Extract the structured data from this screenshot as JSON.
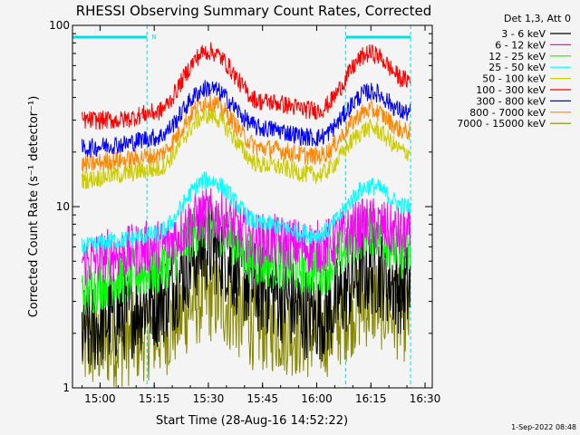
{
  "chart_data": {
    "type": "line",
    "title": "RHESSI Observing Summary Count Rates, Corrected",
    "xlabel": "Start Time (28-Aug-16 14:52:22)",
    "ylabel": "Corrected Count Rate (s⁻¹ detector⁻¹)",
    "yscale": "log",
    "ylim": [
      1,
      100
    ],
    "xlim": [
      "14:52:22",
      "16:32:00"
    ],
    "xticks": [
      "15:00",
      "15:15",
      "15:30",
      "15:45",
      "16:00",
      "16:15",
      "16:30"
    ],
    "yticks": [
      "1",
      "10",
      "100"
    ],
    "grid": false,
    "legend_title": "Det 1,3, Att 0",
    "legend_position": "top-right-outside",
    "series": [
      {
        "name": "3 - 6 keV",
        "color": "#000000",
        "x": [
          "14:55",
          "15:05",
          "15:15",
          "15:30",
          "15:45",
          "16:00",
          "16:15",
          "16:25"
        ],
        "values": [
          2,
          2.5,
          3.0,
          6.0,
          3.5,
          2.5,
          4.5,
          3.5
        ]
      },
      {
        "name": "6 - 12 keV",
        "color": "#ff00ff",
        "x": [
          "14:55",
          "15:05",
          "15:15",
          "15:30",
          "15:45",
          "16:00",
          "16:15",
          "16:25"
        ],
        "values": [
          5,
          5.5,
          6,
          9,
          6.5,
          6,
          8,
          7
        ]
      },
      {
        "name": "12 - 25 keV",
        "color": "#00ff00",
        "x": [
          "14:55",
          "15:05",
          "15:15",
          "15:30",
          "15:45",
          "16:00",
          "16:15",
          "16:25"
        ],
        "values": [
          3.5,
          4,
          4.5,
          8,
          5,
          4.5,
          7.5,
          5.5
        ]
      },
      {
        "name": "25 - 50 keV",
        "color": "#00ffff",
        "x": [
          "14:55",
          "15:05",
          "15:15",
          "15:30",
          "15:45",
          "16:00",
          "16:15",
          "16:25"
        ],
        "values": [
          6,
          6.5,
          7,
          14,
          8,
          7,
          13,
          10
        ]
      },
      {
        "name": "50 - 100 keV",
        "color": "#cccc00",
        "x": [
          "14:55",
          "15:05",
          "15:15",
          "15:30",
          "15:45",
          "16:00",
          "16:15",
          "16:25"
        ],
        "values": [
          14,
          15,
          16,
          32,
          17,
          15,
          27,
          20
        ]
      },
      {
        "name": "100 - 300 keV",
        "color": "#ff0000",
        "x": [
          "14:55",
          "15:05",
          "15:15",
          "15:30",
          "15:45",
          "16:00",
          "16:15",
          "16:25"
        ],
        "values": [
          30,
          30,
          33,
          72,
          38,
          34,
          70,
          50
        ]
      },
      {
        "name": "300 - 800 keV",
        "color": "#0000ff",
        "x": [
          "14:55",
          "15:05",
          "15:15",
          "15:30",
          "15:45",
          "16:00",
          "16:15",
          "16:25"
        ],
        "values": [
          21,
          22,
          24,
          45,
          27,
          24,
          43,
          33
        ]
      },
      {
        "name": "800 - 7000 keV",
        "color": "#ff8800",
        "x": [
          "14:55",
          "15:05",
          "15:15",
          "15:30",
          "15:45",
          "16:00",
          "16:15",
          "16:25"
        ],
        "values": [
          17,
          18,
          19,
          38,
          21,
          19,
          34,
          26
        ]
      },
      {
        "name": "7000 - 15000 keV",
        "color": "#888800",
        "x": [
          "14:55",
          "15:05",
          "15:15",
          "15:30",
          "15:45",
          "16:00",
          "16:15",
          "16:25"
        ],
        "values": [
          1.7,
          1.8,
          2.0,
          3.2,
          2.2,
          2.0,
          3.0,
          2.5
        ]
      }
    ],
    "annotations": [
      {
        "text": "N",
        "color": "#00e0e0"
      }
    ],
    "footer": "1-Sep-2022 08:48"
  }
}
